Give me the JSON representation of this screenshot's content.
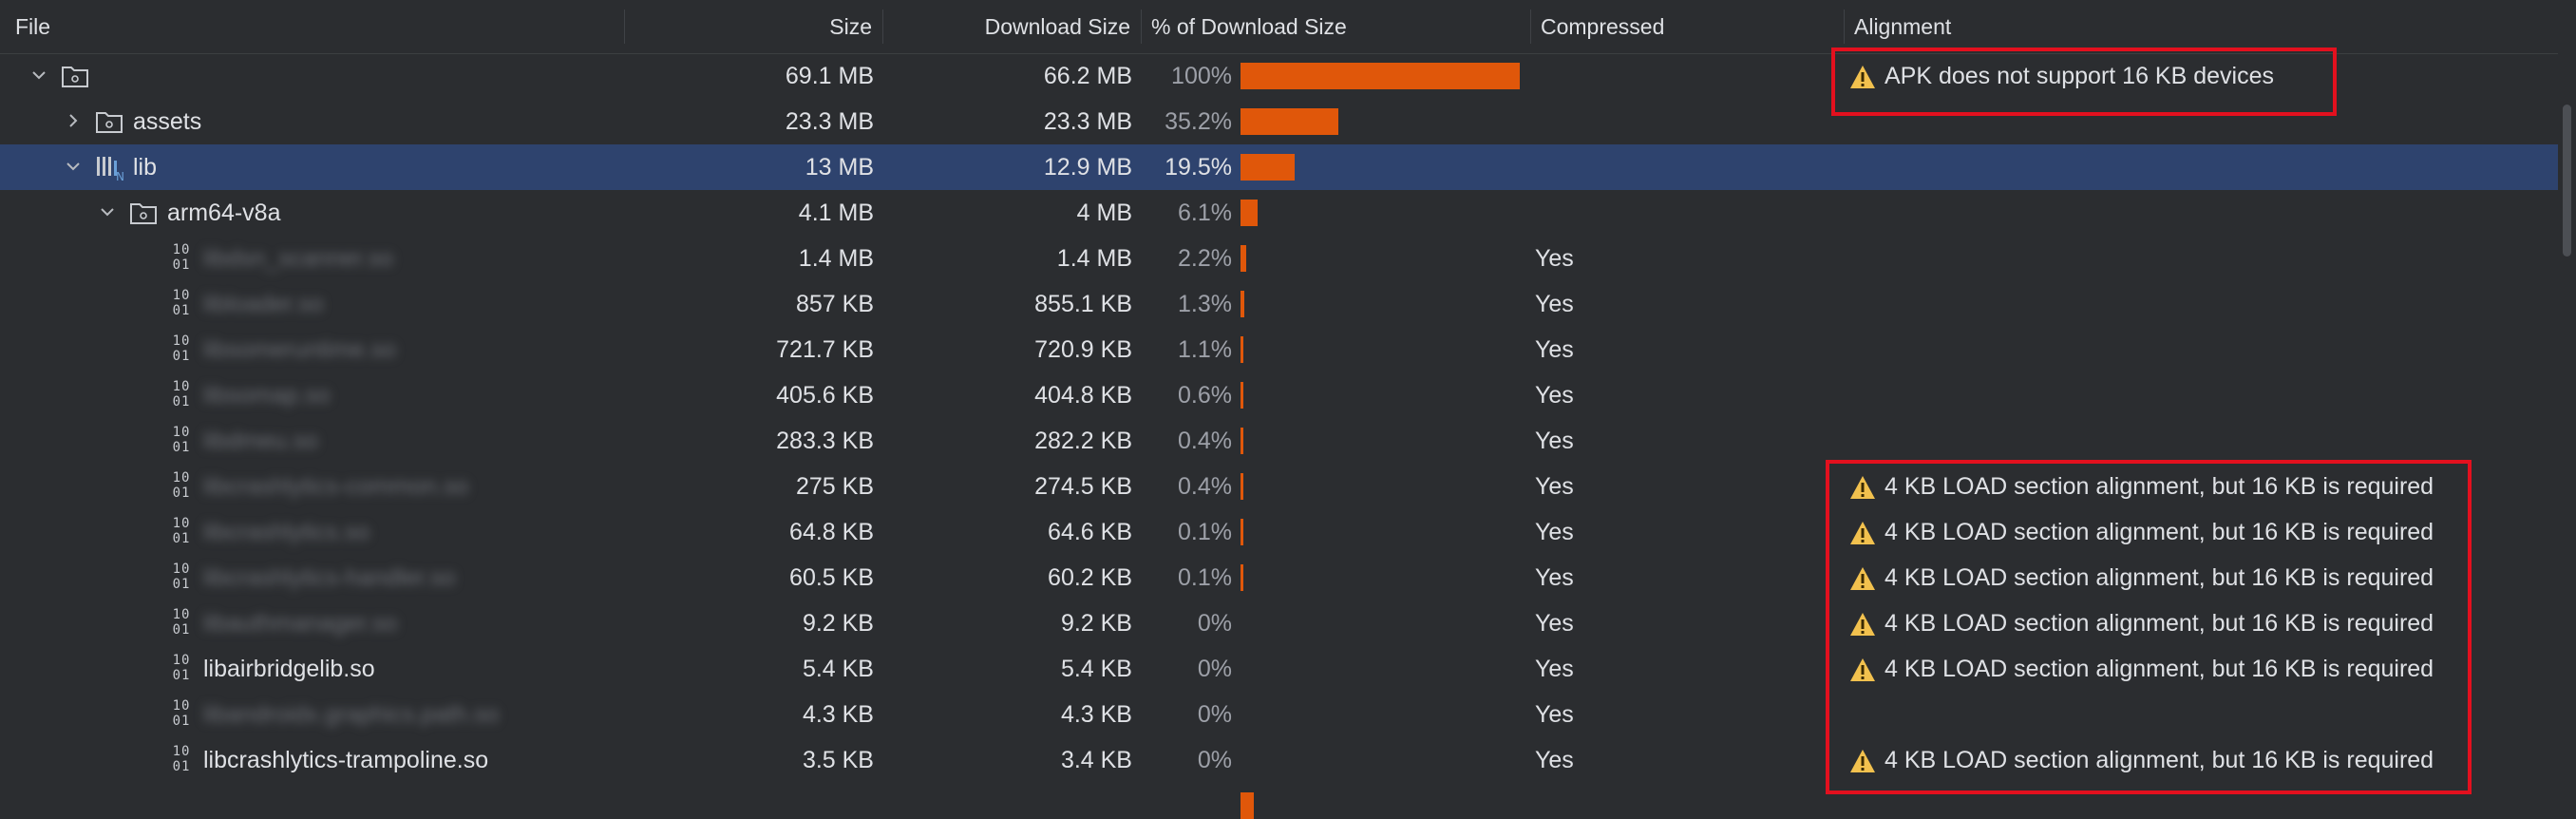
{
  "columns": {
    "file": "File",
    "size": "Size",
    "download_size": "Download Size",
    "percent": "% of Download Size",
    "compressed": "Compressed",
    "alignment": "Alignment"
  },
  "colors": {
    "bar": "#e0570a",
    "selected": "#2e436e",
    "warning": "#f2c14e",
    "highlight_box": "#e3101e"
  },
  "rows": [
    {
      "name": "",
      "size": "69.1 MB",
      "download": "66.2 MB",
      "pct": "100%",
      "pct_value": 100,
      "compressed": "",
      "alignment": "APK does not support 16 KB devices"
    },
    {
      "name": "assets",
      "size": "23.3 MB",
      "download": "23.3 MB",
      "pct": "35.2%",
      "pct_value": 35.2,
      "compressed": "",
      "alignment": ""
    },
    {
      "name": "lib",
      "size": "13 MB",
      "download": "12.9 MB",
      "pct": "19.5%",
      "pct_value": 19.5,
      "compressed": "",
      "alignment": ""
    },
    {
      "name": "arm64-v8a",
      "size": "4.1 MB",
      "download": "4 MB",
      "pct": "6.1%",
      "pct_value": 6.1,
      "compressed": "",
      "alignment": ""
    },
    {
      "name": "libdsn_scanner.so",
      "size": "1.4 MB",
      "download": "1.4 MB",
      "pct": "2.2%",
      "pct_value": 2.2,
      "compressed": "Yes",
      "alignment": ""
    },
    {
      "name": "libloader.so",
      "size": "857 KB",
      "download": "855.1 KB",
      "pct": "1.3%",
      "pct_value": 1.3,
      "compressed": "Yes",
      "alignment": ""
    },
    {
      "name": "libsomeruntime.so",
      "size": "721.7 KB",
      "download": "720.9 KB",
      "pct": "1.1%",
      "pct_value": 1.1,
      "compressed": "Yes",
      "alignment": ""
    },
    {
      "name": "libsomap.so",
      "size": "405.6 KB",
      "download": "404.8 KB",
      "pct": "0.6%",
      "pct_value": 0.6,
      "compressed": "Yes",
      "alignment": ""
    },
    {
      "name": "libdmeu.so",
      "size": "283.3 KB",
      "download": "282.2 KB",
      "pct": "0.4%",
      "pct_value": 0.4,
      "compressed": "Yes",
      "alignment": ""
    },
    {
      "name": "libcrashlytics-common.so",
      "size": "275 KB",
      "download": "274.5 KB",
      "pct": "0.4%",
      "pct_value": 0.4,
      "compressed": "Yes",
      "alignment": "4 KB LOAD section alignment, but 16 KB is required"
    },
    {
      "name": "libcrashlytics.so",
      "size": "64.8 KB",
      "download": "64.6 KB",
      "pct": "0.1%",
      "pct_value": 0.1,
      "compressed": "Yes",
      "alignment": "4 KB LOAD section alignment, but 16 KB is required"
    },
    {
      "name": "libcrashlytics-handler.so",
      "size": "60.5 KB",
      "download": "60.2 KB",
      "pct": "0.1%",
      "pct_value": 0.1,
      "compressed": "Yes",
      "alignment": "4 KB LOAD section alignment, but 16 KB is required"
    },
    {
      "name": "libauthmanager.so",
      "size": "9.2 KB",
      "download": "9.2 KB",
      "pct": "0%",
      "pct_value": 0,
      "compressed": "Yes",
      "alignment": "4 KB LOAD section alignment, but 16 KB is required"
    },
    {
      "name": "libairbridgelib.so",
      "size": "5.4 KB",
      "download": "5.4 KB",
      "pct": "0%",
      "pct_value": 0,
      "compressed": "Yes",
      "alignment": "4 KB LOAD section alignment, but 16 KB is required"
    },
    {
      "name": "libandroidx.graphics.path.so",
      "size": "4.3 KB",
      "download": "4.3 KB",
      "pct": "0%",
      "pct_value": 0,
      "compressed": "Yes",
      "alignment": ""
    },
    {
      "name": "libcrashlytics-trampoline.so",
      "size": "3.5 KB",
      "download": "3.4 KB",
      "pct": "0%",
      "pct_value": 0,
      "compressed": "Yes",
      "alignment": "4 KB LOAD section alignment, but 16 KB is required"
    }
  ]
}
